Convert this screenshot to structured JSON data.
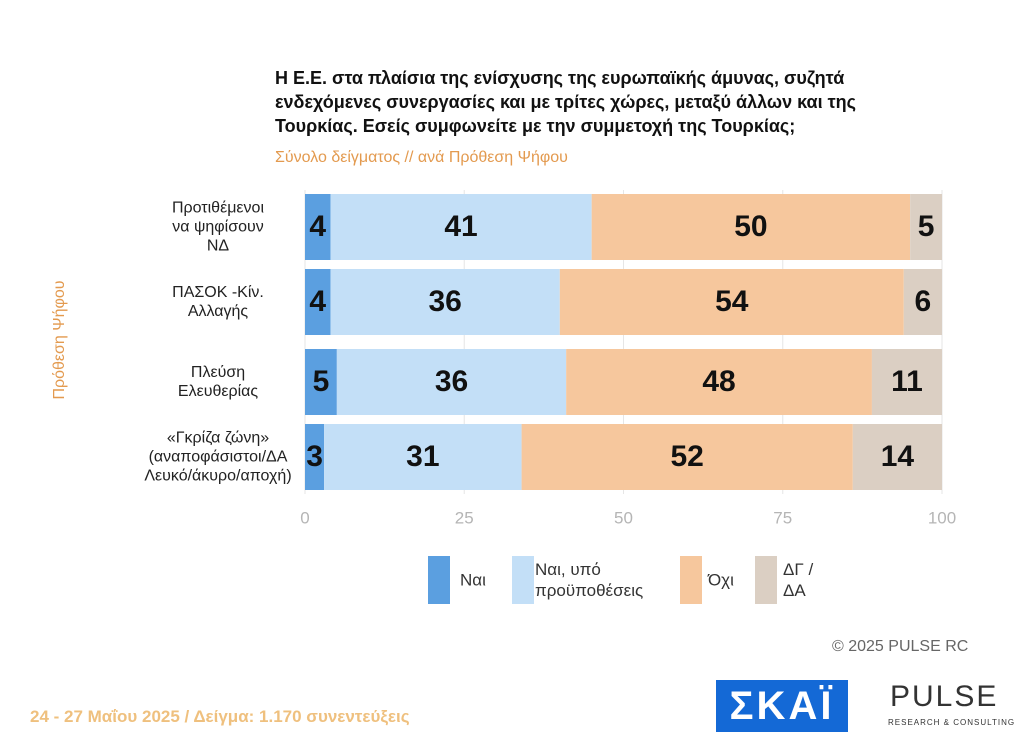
{
  "chart_data": {
    "type": "stacked-bar-horizontal",
    "title": "Η Ε.Ε. στα πλαίσια της ενίσχυσης της ευρωπαϊκής άμυνας, συζητά ενδεχόμενες συνεργασίες και με τρίτες χώρες, μεταξύ άλλων και της Τουρκίας. Εσείς συμφωνείτε με την συμμετοχή της Τουρκίας;",
    "subtitle": "Σύνολο δείγματος // ανά Πρόθεση Ψήφου",
    "y_label": "Πρόθεση Ψήφου",
    "categories": [
      "Προτιθέμενοι\nνα ψηφίσουν\nΝΔ",
      "ΠΑΣΟΚ -Κίν.\nΑλλαγής",
      "Πλεύση\nΕλευθερίας",
      "«Γκρίζα ζώνη»\n(αναποφάσιστοι/ΔΑ\nΛευκό/άκυρο/αποχή)"
    ],
    "series": [
      {
        "name": "Ναι",
        "color": "#5b9fe0",
        "values": [
          4,
          4,
          5,
          3
        ]
      },
      {
        "name": "Ναι, υπό\nπροϋποθέσεις",
        "color": "#c3dff7",
        "values": [
          41,
          36,
          36,
          31
        ]
      },
      {
        "name": "Όχι",
        "color": "#f6c79d",
        "values": [
          50,
          54,
          48,
          52
        ]
      },
      {
        "name": "ΔΓ /\nΔΑ",
        "color": "#dbcfc3",
        "values": [
          5,
          6,
          11,
          14
        ]
      }
    ],
    "xlim": [
      0,
      100
    ],
    "xticks": [
      0,
      25,
      50,
      75,
      100
    ],
    "grid": true,
    "copyright": "©  2025  PULSE RC",
    "footer": "24 - 27 Μαΐου 2025  /  Δείγμα:  1.170 συνεντεύξεις",
    "logos": [
      "ΣΚΑΪ",
      "PULSE",
      "RESEARCH & CONSULTING"
    ]
  }
}
